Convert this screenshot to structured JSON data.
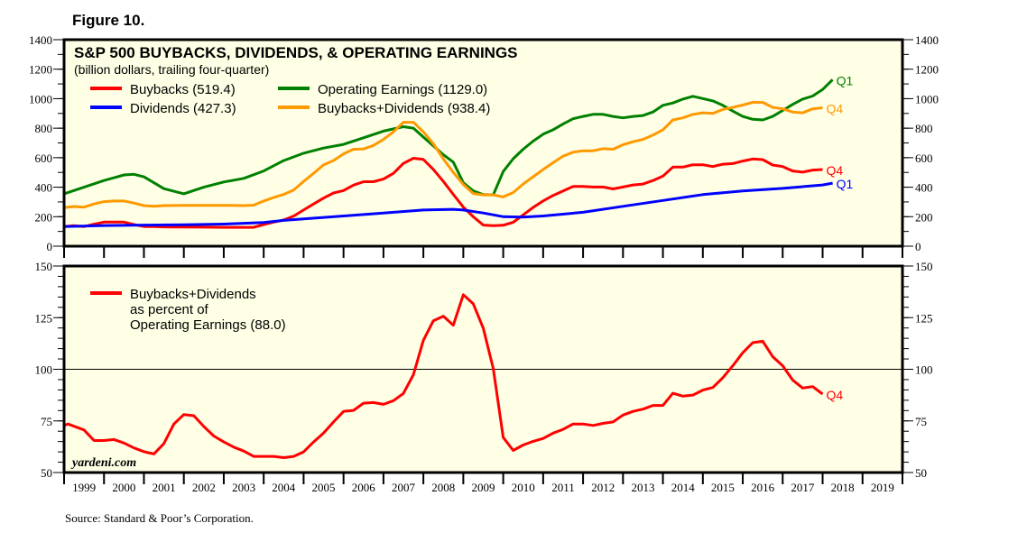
{
  "figure_label": "Figure 10.",
  "source": "Source: Standard & Poor’s Corporation.",
  "watermark": "yardeni.com",
  "chart_data": [
    {
      "type": "line",
      "title": "S&P 500 BUYBACKS, DIVIDENDS, & OPERATING EARNINGS",
      "subtitle": "(billion dollars, trailing four-quarter)",
      "ylim": [
        0,
        1400
      ],
      "yticks": [
        0,
        200,
        400,
        600,
        800,
        1000,
        1200,
        1400
      ],
      "xlim": [
        1999,
        2020
      ],
      "grid": false,
      "legend": "top-left",
      "series": [
        {
          "name": "Buybacks (519.4)",
          "color": "#FF0000",
          "end_label": "Q4",
          "x": [
            1999,
            1999.25,
            1999.5,
            1999.75,
            2000,
            2000.25,
            2000.5,
            2000.75,
            2001,
            2001.25,
            2001.5,
            2001.75,
            2002,
            2002.5,
            2003,
            2003.5,
            2003.75,
            2004,
            2004.25,
            2004.5,
            2004.75,
            2005,
            2005.25,
            2005.5,
            2005.75,
            2006,
            2006.25,
            2006.5,
            2006.75,
            2007,
            2007.25,
            2007.5,
            2007.75,
            2008,
            2008.25,
            2008.5,
            2008.75,
            2009,
            2009.25,
            2009.5,
            2009.75,
            2010,
            2010.25,
            2010.5,
            2010.75,
            2011,
            2011.25,
            2011.5,
            2011.75,
            2012,
            2012.25,
            2012.5,
            2012.75,
            2013,
            2013.25,
            2013.5,
            2013.75,
            2014,
            2014.25,
            2014.5,
            2014.75,
            2015,
            2015.25,
            2015.5,
            2015.75,
            2016,
            2016.25,
            2016.5,
            2016.75,
            2017,
            2017.25,
            2017.5,
            2017.75,
            2018
          ],
          "y": [
            133,
            139,
            133,
            149,
            163,
            163,
            163,
            147,
            133,
            133,
            131,
            130,
            130,
            129,
            128,
            128,
            128,
            147,
            163,
            177,
            204,
            245,
            286,
            326,
            361,
            377,
            414,
            437,
            437,
            455,
            494,
            561,
            596,
            588,
            520,
            439,
            351,
            265,
            200,
            143,
            139,
            142,
            162,
            212,
            263,
            307,
            344,
            374,
            405,
            405,
            401,
            401,
            388,
            401,
            415,
            421,
            445,
            475,
            536,
            536,
            552,
            552,
            540,
            556,
            560,
            577,
            591,
            587,
            550,
            540,
            510,
            502,
            516,
            519.4
          ]
        },
        {
          "name": "Dividends (427.3)",
          "color": "#0000FF",
          "end_label": "Q1",
          "x": [
            1999,
            2000,
            2001,
            2002,
            2003,
            2004,
            2004.5,
            2005,
            2006,
            2007,
            2008,
            2008.75,
            2009,
            2009.5,
            2010,
            2010.5,
            2011,
            2012,
            2013,
            2014,
            2015,
            2016,
            2017,
            2018,
            2018.25
          ],
          "y": [
            133,
            140,
            143,
            145,
            150,
            160,
            175,
            185,
            205,
            225,
            245,
            250,
            245,
            225,
            200,
            197,
            205,
            230,
            270,
            310,
            350,
            375,
            392,
            415,
            427.3
          ]
        },
        {
          "name": "Operating Earnings (1129.0)",
          "color": "#008000",
          "end_label": "Q1",
          "x": [
            1999,
            1999.5,
            2000,
            2000.5,
            2000.75,
            2001,
            2001.5,
            2002,
            2002.5,
            2003,
            2003.5,
            2004,
            2004.5,
            2005,
            2005.5,
            2006,
            2006.5,
            2007,
            2007.5,
            2007.75,
            2008,
            2008.5,
            2008.75,
            2009,
            2009.25,
            2009.5,
            2009.75,
            2010,
            2010.25,
            2010.5,
            2010.75,
            2011,
            2011.25,
            2011.5,
            2011.75,
            2012,
            2012.25,
            2012.5,
            2012.75,
            2013,
            2013.25,
            2013.5,
            2013.75,
            2014,
            2014.25,
            2014.5,
            2014.75,
            2015,
            2015.25,
            2015.5,
            2015.75,
            2016,
            2016.25,
            2016.5,
            2016.75,
            2017,
            2017.25,
            2017.5,
            2017.75,
            2018,
            2018.25
          ],
          "y": [
            355,
            400,
            445,
            483,
            487,
            470,
            390,
            355,
            400,
            435,
            460,
            510,
            580,
            630,
            665,
            690,
            735,
            780,
            810,
            800,
            740,
            620,
            570,
            430,
            375,
            350,
            348,
            506,
            593,
            657,
            712,
            759,
            789,
            829,
            864,
            880,
            894,
            894,
            880,
            870,
            880,
            886,
            910,
            955,
            971,
            997,
            1016,
            1001,
            985,
            955,
            916,
            880,
            860,
            856,
            880,
            920,
            961,
            997,
            1018,
            1062,
            1129.0
          ]
        },
        {
          "name": "Buybacks+Dividends (938.4)",
          "color": "#FF9900",
          "end_label": "Q4",
          "x": [
            1999,
            1999.25,
            1999.5,
            1999.75,
            2000,
            2000.25,
            2000.5,
            2000.75,
            2001,
            2001.25,
            2001.5,
            2002,
            2002.5,
            2003,
            2003.5,
            2003.75,
            2004,
            2004.25,
            2004.5,
            2004.75,
            2005,
            2005.25,
            2005.5,
            2005.75,
            2006,
            2006.25,
            2006.5,
            2006.75,
            2007,
            2007.25,
            2007.5,
            2007.75,
            2008,
            2008.25,
            2008.5,
            2008.75,
            2009,
            2009.25,
            2009.5,
            2009.75,
            2010,
            2010.25,
            2010.5,
            2010.75,
            2011,
            2011.25,
            2011.5,
            2011.75,
            2012,
            2012.25,
            2012.5,
            2012.75,
            2013,
            2013.25,
            2013.5,
            2013.75,
            2014,
            2014.25,
            2014.5,
            2014.75,
            2015,
            2015.25,
            2015.5,
            2015.75,
            2016,
            2016.25,
            2016.5,
            2016.75,
            2017,
            2017.25,
            2017.5,
            2017.75,
            2018
          ],
          "y": [
            261,
            269,
            265,
            286,
            302,
            306,
            306,
            292,
            275,
            271,
            275,
            277,
            277,
            277,
            275,
            278,
            306,
            330,
            351,
            381,
            439,
            494,
            551,
            581,
            626,
            657,
            659,
            683,
            724,
            775,
            840,
            840,
            775,
            694,
            592,
            500,
            418,
            357,
            348,
            348,
            334,
            364,
            421,
            471,
            520,
            566,
            611,
            637,
            647,
            647,
            661,
            657,
            688,
            708,
            724,
            753,
            789,
            856,
            870,
            894,
            904,
            900,
            927,
            941,
            957,
            975,
            975,
            941,
            931,
            910,
            904,
            931,
            938.4
          ]
        }
      ]
    },
    {
      "type": "line",
      "ylim": [
        50,
        150
      ],
      "yticks": [
        50,
        75,
        100,
        125,
        150
      ],
      "reference_line": 100,
      "xlim": [
        1999,
        2020
      ],
      "xtick_labels": [
        "1999",
        "2000",
        "2001",
        "2002",
        "2003",
        "2004",
        "2005",
        "2006",
        "2007",
        "2008",
        "2009",
        "2010",
        "2011",
        "2012",
        "2013",
        "2014",
        "2015",
        "2016",
        "2017",
        "2018",
        "2019"
      ],
      "legend": "top-left",
      "series": [
        {
          "name": "Buybacks+Dividends|as percent of|Operating Earnings (88.0)",
          "color": "#FF0000",
          "end_label": "Q4",
          "x": [
            1999,
            1999.1,
            1999.5,
            1999.75,
            2000,
            2000.25,
            2000.5,
            2000.75,
            2001,
            2001.25,
            2001.5,
            2001.75,
            2002,
            2002.25,
            2002.5,
            2002.75,
            2003,
            2003.25,
            2003.5,
            2003.75,
            2004,
            2004.25,
            2004.5,
            2004.75,
            2005,
            2005.25,
            2005.5,
            2005.75,
            2006,
            2006.25,
            2006.5,
            2006.75,
            2007,
            2007.25,
            2007.5,
            2007.75,
            2008,
            2008.25,
            2008.5,
            2008.75,
            2009,
            2009.25,
            2009.5,
            2009.75,
            2010,
            2010.25,
            2010.5,
            2010.75,
            2011,
            2011.25,
            2011.5,
            2011.75,
            2012,
            2012.25,
            2012.5,
            2012.75,
            2013,
            2013.25,
            2013.5,
            2013.75,
            2014,
            2014.25,
            2014.5,
            2014.75,
            2015,
            2015.25,
            2015.5,
            2015.75,
            2016,
            2016.25,
            2016.5,
            2016.75,
            2017,
            2017.25,
            2017.5,
            2017.75,
            2018
          ],
          "y": [
            72.8,
            73.5,
            70.6,
            65.5,
            65.5,
            66,
            64.3,
            61.9,
            60.1,
            59,
            64,
            73.5,
            78.1,
            77.5,
            72.3,
            67.7,
            64.8,
            62.3,
            60.4,
            57.8,
            57.8,
            57.8,
            57.2,
            57.8,
            60,
            64.8,
            69.1,
            74.5,
            79.6,
            80.1,
            83.6,
            83.9,
            83,
            84.8,
            88.3,
            97.4,
            114,
            123.5,
            125.7,
            121.3,
            136.1,
            131.7,
            119.9,
            100.3,
            67,
            60.7,
            63.3,
            65.1,
            66.5,
            69.1,
            70.9,
            73.5,
            73.5,
            72.8,
            73.8,
            74.5,
            77.8,
            79.6,
            80.7,
            82.5,
            82.5,
            88.4,
            87,
            87.5,
            89.9,
            91.2,
            95.9,
            101.7,
            108,
            112.9,
            113.6,
            106.1,
            101.7,
            94.8,
            90.9,
            91.6,
            88.0
          ]
        }
      ]
    }
  ]
}
